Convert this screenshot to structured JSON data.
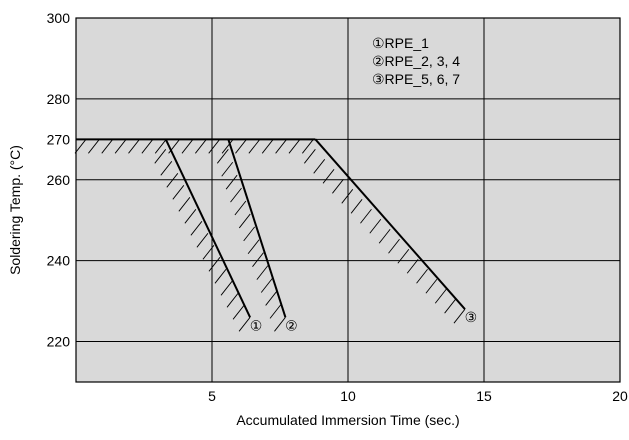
{
  "chart_data": {
    "type": "line",
    "xlabel": "Accumulated Immersion Time (sec.)",
    "ylabel": "Soldering Temp. (°C)",
    "xlim": [
      0,
      20
    ],
    "ylim": [
      210,
      300
    ],
    "xticks": [
      5,
      10,
      15,
      20
    ],
    "yticks": [
      220,
      240,
      260,
      270,
      280,
      300
    ],
    "grid": true,
    "background": "#d9d9d9",
    "plateau": {
      "temp": 270,
      "x_start": 0,
      "x_end": 8.8
    },
    "series": [
      {
        "name": "RPE_1",
        "marker": "①",
        "x": [
          3.3,
          6.4
        ],
        "y": [
          270,
          226
        ]
      },
      {
        "name": "RPE_2, 3, 4",
        "marker": "②",
        "x": [
          5.6,
          7.7
        ],
        "y": [
          270,
          226
        ]
      },
      {
        "name": "RPE_5, 6, 7",
        "marker": "③",
        "x": [
          8.8,
          14.3
        ],
        "y": [
          270,
          228
        ]
      }
    ],
    "legend": {
      "placement": "top-right",
      "entries": [
        {
          "marker": "①",
          "label": "RPE_1"
        },
        {
          "marker": "②",
          "label": "RPE_2, 3, 4"
        },
        {
          "marker": "③",
          "label": "RPE_5, 6, 7"
        }
      ]
    }
  }
}
